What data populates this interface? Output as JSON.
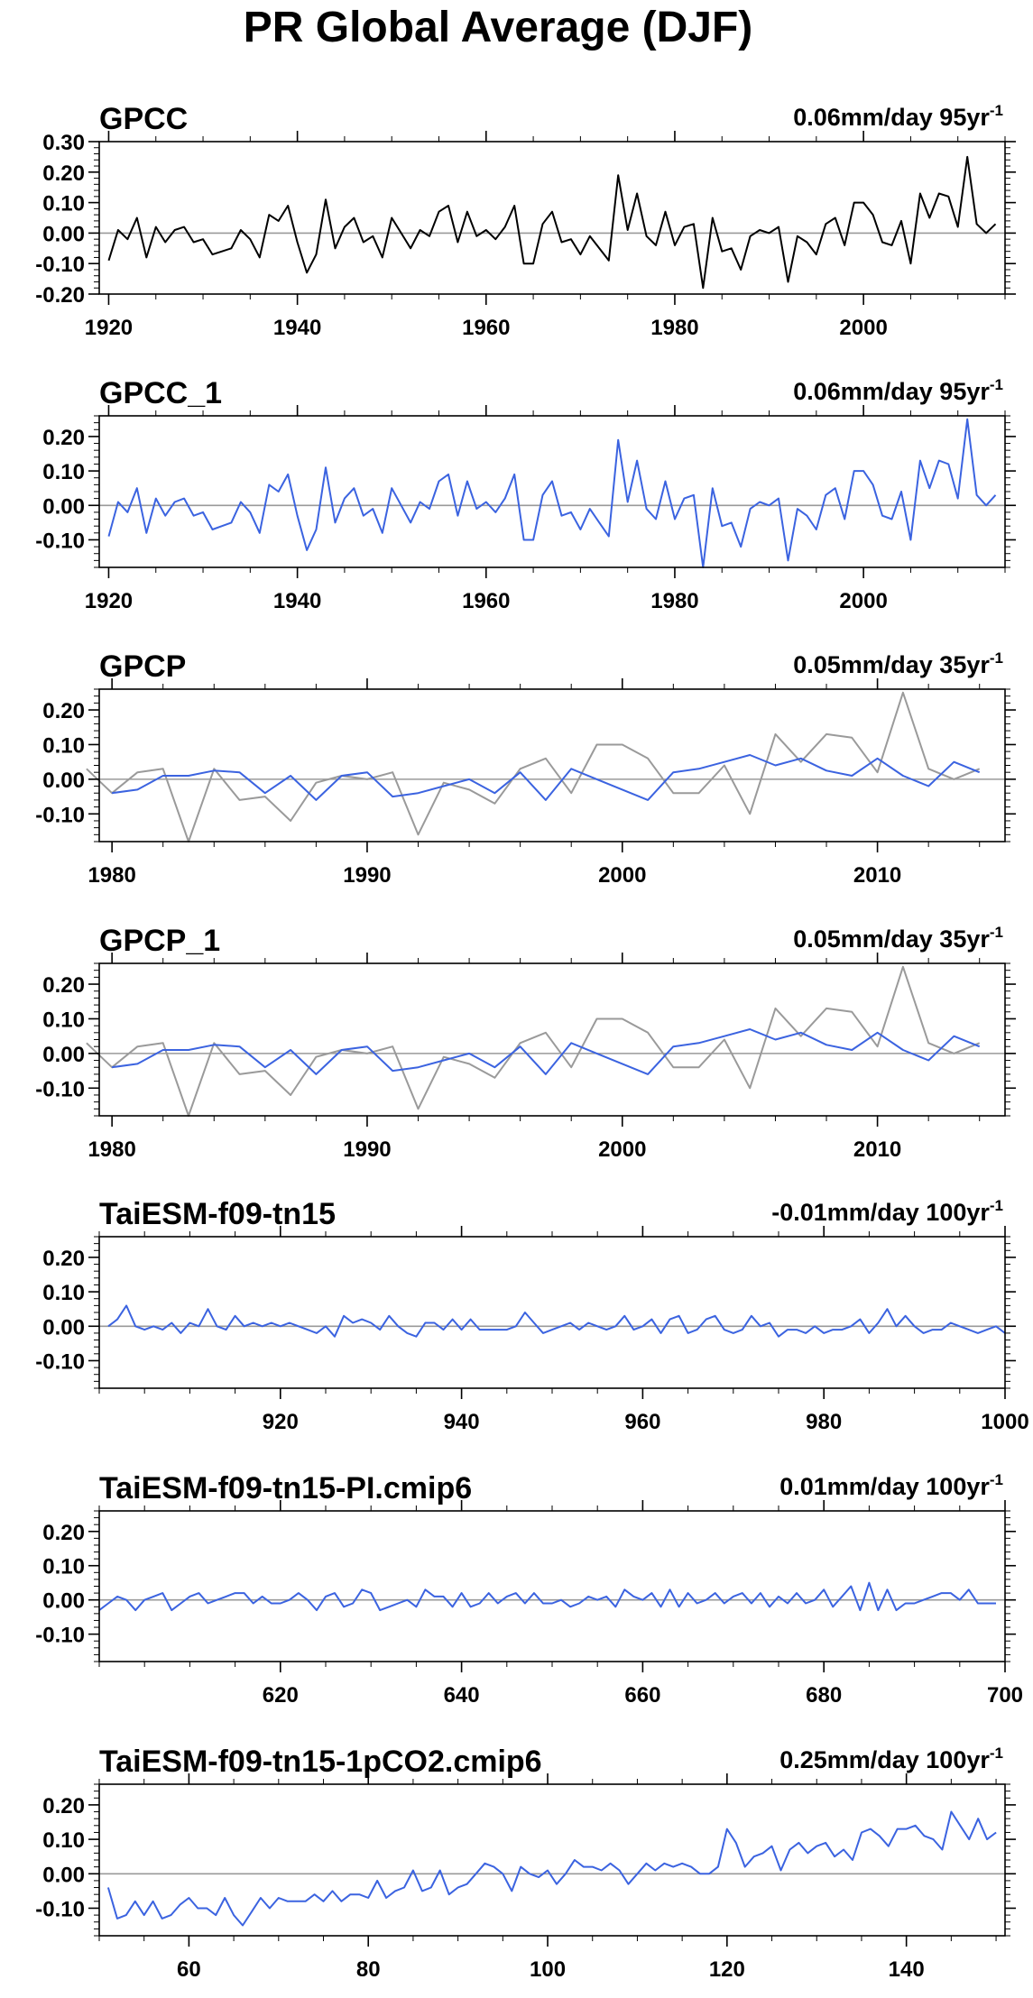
{
  "title": "PR Global Average (DJF)",
  "colors": {
    "black": "#000000",
    "blue": "#3b63e0",
    "gray": "#9a9a9a",
    "zero": "#9a9a9a"
  },
  "chart_data": [
    {
      "type": "line",
      "title": "GPCC",
      "trend_label": "0.06mm/day 95yr",
      "trend_exp": "-1",
      "xlim": [
        1919,
        2015
      ],
      "ylim": [
        -0.2,
        0.3
      ],
      "xticks": [
        1920,
        1940,
        1960,
        1980,
        2000
      ],
      "yticks": [
        0.3,
        0.2,
        0.1,
        0.0,
        -0.1,
        -0.2
      ],
      "ytick_labels": [
        "0.30",
        "0.20",
        "0.10",
        "0.00",
        "-0.10",
        "-0.20"
      ],
      "series": [
        {
          "color": "black",
          "x0": 1920,
          "values": [
            -0.09,
            0.01,
            -0.02,
            0.05,
            -0.08,
            0.02,
            -0.03,
            0.01,
            0.02,
            -0.03,
            -0.02,
            -0.07,
            -0.06,
            -0.05,
            0.01,
            -0.02,
            -0.08,
            0.06,
            0.04,
            0.09,
            -0.03,
            -0.13,
            -0.07,
            0.11,
            -0.05,
            0.02,
            0.05,
            -0.03,
            -0.01,
            -0.08,
            0.05,
            0.0,
            -0.05,
            0.01,
            -0.01,
            0.07,
            0.09,
            -0.03,
            0.07,
            -0.01,
            0.01,
            -0.02,
            0.02,
            0.09,
            -0.1,
            -0.1,
            0.03,
            0.07,
            -0.03,
            -0.02,
            -0.07,
            -0.01,
            -0.05,
            -0.09,
            0.19,
            0.01,
            0.13,
            -0.01,
            -0.04,
            0.07,
            -0.04,
            0.02,
            0.03,
            -0.18,
            0.05,
            -0.06,
            -0.05,
            -0.12,
            -0.01,
            0.01,
            0.0,
            0.02,
            -0.16,
            -0.01,
            -0.03,
            -0.07,
            0.03,
            0.05,
            -0.04,
            0.1,
            0.1,
            0.06,
            -0.03,
            -0.04,
            0.04,
            -0.1,
            0.13,
            0.05,
            0.13,
            0.12,
            0.02,
            0.25,
            0.03,
            0.0,
            0.03
          ]
        }
      ]
    },
    {
      "type": "line",
      "title": "GPCC_1",
      "trend_label": "0.06mm/day 95yr",
      "trend_exp": "-1",
      "xlim": [
        1919,
        2015
      ],
      "ylim": [
        -0.18,
        0.26
      ],
      "xticks": [
        1920,
        1940,
        1960,
        1980,
        2000
      ],
      "yticks": [
        0.2,
        0.1,
        0.0,
        -0.1
      ],
      "ytick_labels": [
        "0.20",
        "0.10",
        "0.00",
        "-0.10"
      ],
      "series": [
        {
          "color": "blue",
          "x0": 1920,
          "values": [
            -0.09,
            0.01,
            -0.02,
            0.05,
            -0.08,
            0.02,
            -0.03,
            0.01,
            0.02,
            -0.03,
            -0.02,
            -0.07,
            -0.06,
            -0.05,
            0.01,
            -0.02,
            -0.08,
            0.06,
            0.04,
            0.09,
            -0.03,
            -0.13,
            -0.07,
            0.11,
            -0.05,
            0.02,
            0.05,
            -0.03,
            -0.01,
            -0.08,
            0.05,
            0.0,
            -0.05,
            0.01,
            -0.01,
            0.07,
            0.09,
            -0.03,
            0.07,
            -0.01,
            0.01,
            -0.02,
            0.02,
            0.09,
            -0.1,
            -0.1,
            0.03,
            0.07,
            -0.03,
            -0.02,
            -0.07,
            -0.01,
            -0.05,
            -0.09,
            0.19,
            0.01,
            0.13,
            -0.01,
            -0.04,
            0.07,
            -0.04,
            0.02,
            0.03,
            -0.18,
            0.05,
            -0.06,
            -0.05,
            -0.12,
            -0.01,
            0.01,
            0.0,
            0.02,
            -0.16,
            -0.01,
            -0.03,
            -0.07,
            0.03,
            0.05,
            -0.04,
            0.1,
            0.1,
            0.06,
            -0.03,
            -0.04,
            0.04,
            -0.1,
            0.13,
            0.05,
            0.13,
            0.12,
            0.02,
            0.25,
            0.03,
            0.0,
            0.03
          ]
        }
      ]
    },
    {
      "type": "line",
      "title": "GPCP",
      "trend_label": "0.05mm/day 35yr",
      "trend_exp": "-1",
      "xlim": [
        1979.5,
        2015
      ],
      "ylim": [
        -0.18,
        0.26
      ],
      "xticks": [
        1980,
        1990,
        2000,
        2010
      ],
      "yticks": [
        0.2,
        0.1,
        0.0,
        -0.1
      ],
      "ytick_labels": [
        "0.20",
        "0.10",
        "0.00",
        "-0.10"
      ],
      "series": [
        {
          "color": "gray",
          "x0": 1979,
          "values": [
            0.03,
            -0.04,
            0.02,
            0.03,
            -0.18,
            0.03,
            -0.06,
            -0.05,
            -0.12,
            -0.01,
            0.01,
            0.0,
            0.02,
            -0.16,
            -0.01,
            -0.03,
            -0.07,
            0.03,
            0.06,
            -0.04,
            0.1,
            0.1,
            0.06,
            -0.04,
            -0.04,
            0.04,
            -0.1,
            0.13,
            0.05,
            0.13,
            0.12,
            0.02,
            0.25,
            0.03,
            0.0,
            0.03
          ]
        },
        {
          "color": "blue",
          "x0": 1980,
          "values": [
            -0.04,
            -0.03,
            0.01,
            0.01,
            0.025,
            0.02,
            -0.04,
            0.01,
            -0.06,
            0.01,
            0.02,
            -0.05,
            -0.04,
            -0.02,
            0.0,
            -0.04,
            0.02,
            -0.06,
            0.03,
            0.0,
            -0.03,
            -0.06,
            0.02,
            0.03,
            0.05,
            0.07,
            0.04,
            0.06,
            0.025,
            0.01,
            0.06,
            0.01,
            -0.02,
            0.05,
            0.02
          ]
        }
      ]
    },
    {
      "type": "line",
      "title": "GPCP_1",
      "trend_label": "0.05mm/day 35yr",
      "trend_exp": "-1",
      "xlim": [
        1979.5,
        2015
      ],
      "ylim": [
        -0.18,
        0.26
      ],
      "xticks": [
        1980,
        1990,
        2000,
        2010
      ],
      "yticks": [
        0.2,
        0.1,
        0.0,
        -0.1
      ],
      "ytick_labels": [
        "0.20",
        "0.10",
        "0.00",
        "-0.10"
      ],
      "series": [
        {
          "color": "gray",
          "x0": 1979,
          "values": [
            0.03,
            -0.04,
            0.02,
            0.03,
            -0.18,
            0.03,
            -0.06,
            -0.05,
            -0.12,
            -0.01,
            0.01,
            0.0,
            0.02,
            -0.16,
            -0.01,
            -0.03,
            -0.07,
            0.03,
            0.06,
            -0.04,
            0.1,
            0.1,
            0.06,
            -0.04,
            -0.04,
            0.04,
            -0.1,
            0.13,
            0.05,
            0.13,
            0.12,
            0.02,
            0.25,
            0.03,
            0.0,
            0.03
          ]
        },
        {
          "color": "blue",
          "x0": 1980,
          "values": [
            -0.04,
            -0.03,
            0.01,
            0.01,
            0.025,
            0.02,
            -0.04,
            0.01,
            -0.06,
            0.01,
            0.02,
            -0.05,
            -0.04,
            -0.02,
            0.0,
            -0.04,
            0.02,
            -0.06,
            0.03,
            0.0,
            -0.03,
            -0.06,
            0.02,
            0.03,
            0.05,
            0.07,
            0.04,
            0.06,
            0.025,
            0.01,
            0.06,
            0.01,
            -0.02,
            0.05,
            0.02
          ]
        }
      ]
    },
    {
      "type": "line",
      "title": "TaiESM-f09-tn15",
      "trend_label": "-0.01mm/day 100yr",
      "trend_exp": "-1",
      "xlim": [
        900,
        1000
      ],
      "ylim": [
        -0.18,
        0.26
      ],
      "xticks": [
        920,
        940,
        960,
        980,
        1000
      ],
      "yticks": [
        0.2,
        0.1,
        0.0,
        -0.1
      ],
      "ytick_labels": [
        "0.20",
        "0.10",
        "0.00",
        "-0.10"
      ],
      "series": [
        {
          "color": "blue",
          "x0": 901,
          "values": [
            0.0,
            0.02,
            0.06,
            0.0,
            -0.01,
            0.0,
            -0.01,
            0.01,
            -0.02,
            0.01,
            0.0,
            0.05,
            0.0,
            -0.01,
            0.03,
            0.0,
            0.01,
            0.0,
            0.01,
            0.0,
            0.01,
            0.0,
            -0.01,
            -0.02,
            0.0,
            -0.03,
            0.03,
            0.01,
            0.02,
            0.01,
            -0.01,
            0.03,
            0.0,
            -0.02,
            -0.03,
            0.01,
            0.01,
            -0.01,
            0.02,
            -0.01,
            0.02,
            -0.01,
            -0.01,
            -0.01,
            -0.01,
            0.0,
            0.04,
            0.01,
            -0.02,
            -0.01,
            0.0,
            0.01,
            -0.01,
            0.01,
            0.0,
            -0.01,
            0.0,
            0.03,
            -0.01,
            0.0,
            0.02,
            -0.02,
            0.02,
            0.03,
            -0.02,
            -0.01,
            0.02,
            0.03,
            -0.01,
            -0.02,
            -0.01,
            0.03,
            0.0,
            0.01,
            -0.03,
            -0.01,
            -0.01,
            -0.02,
            0.0,
            -0.02,
            -0.01,
            -0.01,
            0.0,
            0.02,
            -0.02,
            0.01,
            0.05,
            0.0,
            0.03,
            0.0,
            -0.02,
            -0.01,
            -0.01,
            0.01,
            0.0,
            -0.01,
            -0.02,
            -0.01,
            0.0,
            -0.02
          ]
        }
      ]
    },
    {
      "type": "line",
      "title": "TaiESM-f09-tn15-PI.cmip6",
      "trend_label": "0.01mm/day 100yr",
      "trend_exp": "-1",
      "xlim": [
        600,
        700
      ],
      "ylim": [
        -0.18,
        0.26
      ],
      "xticks": [
        620,
        640,
        660,
        680,
        700
      ],
      "yticks": [
        0.2,
        0.1,
        0.0,
        -0.1
      ],
      "ytick_labels": [
        "0.20",
        "0.10",
        "0.00",
        "-0.10"
      ],
      "series": [
        {
          "color": "blue",
          "x0": 600,
          "values": [
            -0.03,
            -0.01,
            0.01,
            0.0,
            -0.03,
            0.0,
            0.01,
            0.02,
            -0.03,
            -0.01,
            0.01,
            0.02,
            -0.01,
            0.0,
            0.01,
            0.02,
            0.02,
            -0.01,
            0.01,
            -0.01,
            -0.01,
            0.0,
            0.02,
            0.0,
            -0.03,
            0.01,
            0.02,
            -0.02,
            -0.01,
            0.03,
            0.02,
            -0.03,
            -0.02,
            -0.01,
            0.0,
            -0.02,
            0.03,
            0.01,
            0.01,
            -0.02,
            0.02,
            -0.02,
            -0.01,
            0.02,
            -0.01,
            0.01,
            0.02,
            -0.01,
            0.02,
            -0.01,
            -0.01,
            0.0,
            -0.02,
            -0.01,
            0.01,
            0.0,
            0.01,
            -0.02,
            0.03,
            0.01,
            0.0,
            0.02,
            -0.02,
            0.03,
            -0.02,
            0.02,
            -0.01,
            0.0,
            0.02,
            -0.01,
            0.01,
            0.02,
            -0.01,
            0.02,
            -0.02,
            0.01,
            -0.01,
            0.02,
            -0.01,
            0.0,
            0.03,
            -0.02,
            0.01,
            0.04,
            -0.03,
            0.05,
            -0.03,
            0.03,
            -0.03,
            -0.01,
            -0.01,
            0.0,
            0.01,
            0.02,
            0.02,
            0.0,
            0.03,
            -0.01,
            -0.01,
            -0.01
          ]
        }
      ]
    },
    {
      "type": "line",
      "title": "TaiESM-f09-tn15-1pCO2.cmip6",
      "trend_label": "0.25mm/day 100yr",
      "trend_exp": "-1",
      "xlim": [
        50,
        151
      ],
      "ylim": [
        -0.18,
        0.26
      ],
      "xticks": [
        60,
        80,
        100,
        120,
        140
      ],
      "yticks": [
        0.2,
        0.1,
        0.0,
        -0.1
      ],
      "ytick_labels": [
        "0.20",
        "0.10",
        "0.00",
        "-0.10"
      ],
      "series": [
        {
          "color": "blue",
          "x0": 51,
          "values": [
            -0.04,
            -0.13,
            -0.12,
            -0.08,
            -0.12,
            -0.08,
            -0.13,
            -0.12,
            -0.09,
            -0.07,
            -0.1,
            -0.1,
            -0.12,
            -0.07,
            -0.12,
            -0.15,
            -0.11,
            -0.07,
            -0.1,
            -0.07,
            -0.08,
            -0.08,
            -0.08,
            -0.06,
            -0.08,
            -0.05,
            -0.08,
            -0.06,
            -0.06,
            -0.07,
            -0.02,
            -0.07,
            -0.05,
            -0.04,
            0.01,
            -0.05,
            -0.04,
            0.01,
            -0.06,
            -0.04,
            -0.03,
            0.0,
            0.03,
            0.02,
            0.0,
            -0.05,
            0.02,
            0.0,
            -0.01,
            0.01,
            -0.03,
            0.0,
            0.04,
            0.02,
            0.02,
            0.01,
            0.03,
            0.01,
            -0.03,
            0.0,
            0.03,
            0.01,
            0.03,
            0.02,
            0.03,
            0.02,
            0.0,
            0.0,
            0.02,
            0.13,
            0.09,
            0.02,
            0.05,
            0.06,
            0.08,
            0.01,
            0.07,
            0.09,
            0.06,
            0.08,
            0.09,
            0.05,
            0.07,
            0.04,
            0.12,
            0.13,
            0.11,
            0.08,
            0.13,
            0.13,
            0.14,
            0.11,
            0.1,
            0.07,
            0.18,
            0.14,
            0.1,
            0.16,
            0.1,
            0.12
          ]
        }
      ]
    }
  ]
}
